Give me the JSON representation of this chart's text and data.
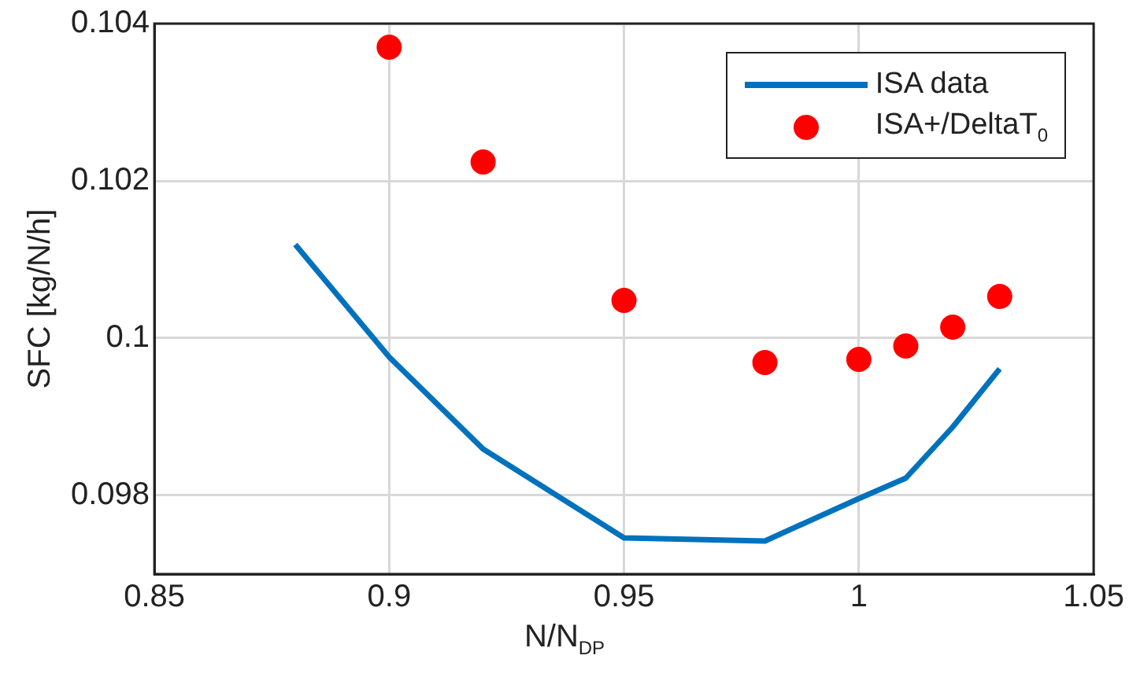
{
  "chart_data": {
    "type": "line",
    "xlabel": "N/N$_{DP}$",
    "ylabel": "SFC [kg/N/h]",
    "series": [
      {
        "name": "ISA data",
        "color": "#0072bd",
        "x": [
          0.88,
          0.9,
          0.92,
          0.95,
          0.98,
          1.0,
          1.01,
          1.02,
          1.03
        ],
        "values": [
          0.10119,
          0.09976,
          0.09859,
          0.09746,
          0.09742,
          0.09796,
          0.09822,
          0.09887,
          0.09961
        ],
        "marker": "none"
      },
      {
        "name": "ISA+/DeltaT$_{0}$",
        "type": "scatter",
        "color": "#ff0000",
        "x": [
          0.9,
          0.92,
          0.95,
          0.98,
          1.0,
          1.01,
          1.02,
          1.03
        ],
        "values": [
          0.1037,
          0.10224,
          0.10048,
          0.09969,
          0.09973,
          0.0999,
          0.10014,
          0.10053
        ],
        "marker": "circle"
      }
    ],
    "xlim": [
      0.85,
      1.05
    ],
    "xticks": [
      0.85,
      0.9,
      0.95,
      1,
      1.05
    ],
    "ylim": [
      0.097,
      0.104
    ],
    "yticks": [
      0.098,
      0.1,
      0.102,
      0.104
    ],
    "grid": true,
    "legend": "top right"
  }
}
